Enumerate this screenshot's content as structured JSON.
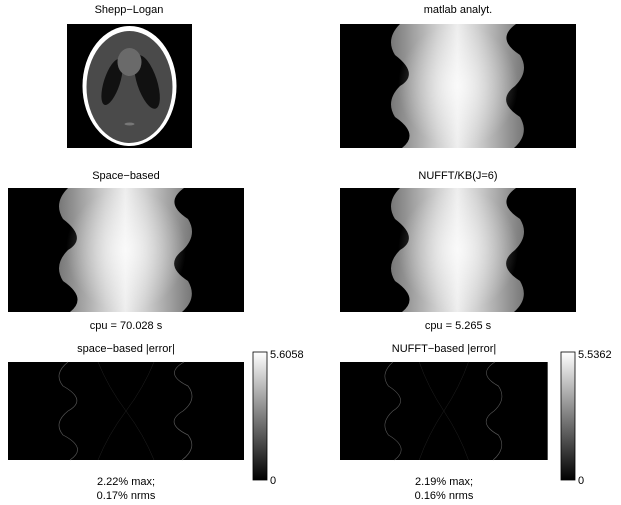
{
  "panels": [
    {
      "title": "Shepp−Logan"
    },
    {
      "title": "matlab analyt."
    },
    {
      "title": "Space−based",
      "caption": [
        "cpu = 70.028 s"
      ]
    },
    {
      "title": "NUFFT/KB(J=6)",
      "caption": [
        "cpu = 5.265 s"
      ]
    },
    {
      "title": "space−based |error|",
      "caption": [
        "2.22% max;",
        "0.17% nrms"
      ],
      "colorbar": {
        "max": "5.6058",
        "min": "0"
      }
    },
    {
      "title": "NUFFT−based |error|",
      "caption": [
        "2.19% max;",
        "0.16% nrms"
      ],
      "colorbar": {
        "max": "5.5362",
        "min": "0"
      }
    }
  ]
}
